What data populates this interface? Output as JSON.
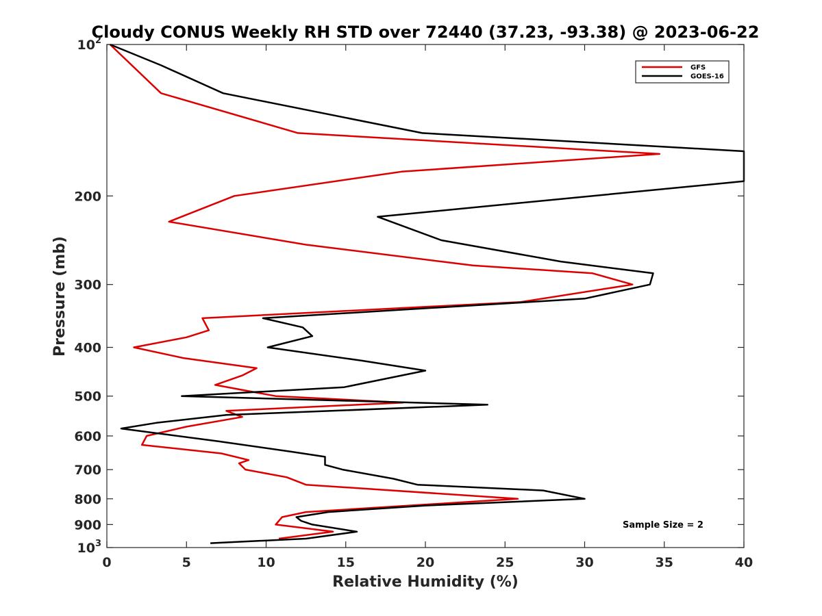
{
  "chart_data": {
    "type": "line",
    "title": "Cloudy CONUS Weekly RH STD over 72440 (37.23, -93.38) @ 2023-06-22",
    "xlabel": "Relative Humidity (%)",
    "ylabel": "Pressure (mb)",
    "xlim": [
      0,
      40
    ],
    "ylim": [
      100,
      1000
    ],
    "y_scale": "log",
    "y_reversed": true,
    "x_ticks": [
      0,
      5,
      10,
      15,
      20,
      25,
      30,
      35,
      40
    ],
    "y_ticks": [
      100,
      200,
      300,
      400,
      500,
      600,
      700,
      800,
      900,
      1000
    ],
    "y_tick_labels": [
      "10^2",
      "200",
      "300",
      "400",
      "500",
      "600",
      "700",
      "800",
      "900",
      "10^3"
    ],
    "grid": false,
    "legend_position": "top-right",
    "annotation": "Sample Size = 2",
    "series": [
      {
        "name": "GFS",
        "color": "#dd0000",
        "points": [
          [
            0.2,
            100
          ],
          [
            3.4,
            125
          ],
          [
            12.0,
            150
          ],
          [
            34.7,
            165
          ],
          [
            18.5,
            179
          ],
          [
            8.0,
            200
          ],
          [
            3.9,
            225
          ],
          [
            12.5,
            250
          ],
          [
            23.0,
            275
          ],
          [
            30.5,
            285
          ],
          [
            33.0,
            300
          ],
          [
            26.0,
            325
          ],
          [
            6.0,
            350
          ],
          [
            6.4,
            370
          ],
          [
            5.0,
            382
          ],
          [
            1.7,
            400
          ],
          [
            4.8,
            420
          ],
          [
            9.4,
            440
          ],
          [
            8.5,
            455
          ],
          [
            6.8,
            475
          ],
          [
            10.6,
            500
          ],
          [
            18.6,
            515
          ],
          [
            7.5,
            535
          ],
          [
            8.5,
            550
          ],
          [
            5.0,
            575
          ],
          [
            2.5,
            600
          ],
          [
            2.2,
            625
          ],
          [
            7.2,
            650
          ],
          [
            8.9,
            670
          ],
          [
            8.3,
            680
          ],
          [
            8.7,
            700
          ],
          [
            11.3,
            725
          ],
          [
            12.5,
            750
          ],
          [
            25.8,
            800
          ],
          [
            12.5,
            850
          ],
          [
            11.0,
            870
          ],
          [
            10.6,
            900
          ],
          [
            14.2,
            930
          ],
          [
            10.8,
            960
          ]
        ]
      },
      {
        "name": "GOES-16",
        "color": "#000000",
        "points": [
          [
            0.2,
            100
          ],
          [
            3.4,
            110
          ],
          [
            7.3,
            125
          ],
          [
            19.8,
            150
          ],
          [
            40.0,
            163
          ],
          [
            40.0,
            187
          ],
          [
            17.0,
            220
          ],
          [
            21.0,
            245
          ],
          [
            28.5,
            270
          ],
          [
            34.3,
            285
          ],
          [
            34.1,
            300
          ],
          [
            30.0,
            320
          ],
          [
            9.8,
            350
          ],
          [
            12.3,
            365
          ],
          [
            12.9,
            380
          ],
          [
            10.1,
            400
          ],
          [
            16.0,
            425
          ],
          [
            20.0,
            445
          ],
          [
            14.9,
            480
          ],
          [
            4.7,
            500
          ],
          [
            23.9,
            520
          ],
          [
            7.5,
            545
          ],
          [
            3.1,
            565
          ],
          [
            0.9,
            580
          ],
          [
            7.0,
            615
          ],
          [
            11.6,
            645
          ],
          [
            13.7,
            660
          ],
          [
            13.7,
            685
          ],
          [
            14.8,
            700
          ],
          [
            18.0,
            730
          ],
          [
            19.5,
            750
          ],
          [
            27.4,
            770
          ],
          [
            30.0,
            800
          ],
          [
            20.0,
            825
          ],
          [
            13.9,
            850
          ],
          [
            11.9,
            870
          ],
          [
            12.2,
            885
          ],
          [
            12.9,
            900
          ],
          [
            15.7,
            930
          ],
          [
            12.5,
            960
          ],
          [
            6.5,
            980
          ]
        ]
      }
    ]
  }
}
